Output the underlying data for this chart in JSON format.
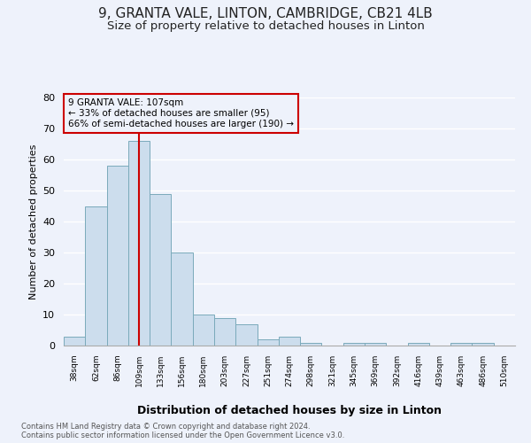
{
  "title_line1": "9, GRANTA VALE, LINTON, CAMBRIDGE, CB21 4LB",
  "title_line2": "Size of property relative to detached houses in Linton",
  "xlabel": "Distribution of detached houses by size in Linton",
  "ylabel": "Number of detached properties",
  "footnote1": "Contains HM Land Registry data © Crown copyright and database right 2024.",
  "footnote2": "Contains public sector information licensed under the Open Government Licence v3.0.",
  "annotation_line1": "9 GRANTA VALE: 107sqm",
  "annotation_line2": "← 33% of detached houses are smaller (95)",
  "annotation_line3": "66% of semi-detached houses are larger (190) →",
  "bar_labels": [
    "38sqm",
    "62sqm",
    "86sqm",
    "109sqm",
    "133sqm",
    "156sqm",
    "180sqm",
    "203sqm",
    "227sqm",
    "251sqm",
    "274sqm",
    "298sqm",
    "321sqm",
    "345sqm",
    "369sqm",
    "392sqm",
    "416sqm",
    "439sqm",
    "463sqm",
    "486sqm",
    "510sqm"
  ],
  "bar_heights": [
    3,
    45,
    58,
    66,
    49,
    30,
    10,
    9,
    7,
    2,
    3,
    1,
    0,
    1,
    1,
    0,
    1,
    0,
    1,
    1,
    0
  ],
  "bar_color": "#ccdded",
  "bar_edge_color": "#7aaabb",
  "vline_x": 3,
  "vline_color": "#cc0000",
  "annotation_box_color": "#cc0000",
  "ylim": [
    0,
    80
  ],
  "yticks": [
    0,
    10,
    20,
    30,
    40,
    50,
    60,
    70,
    80
  ],
  "bg_color": "#eef2fb",
  "grid_color": "#ffffff",
  "title_fontsize": 11,
  "subtitle_fontsize": 9.5
}
